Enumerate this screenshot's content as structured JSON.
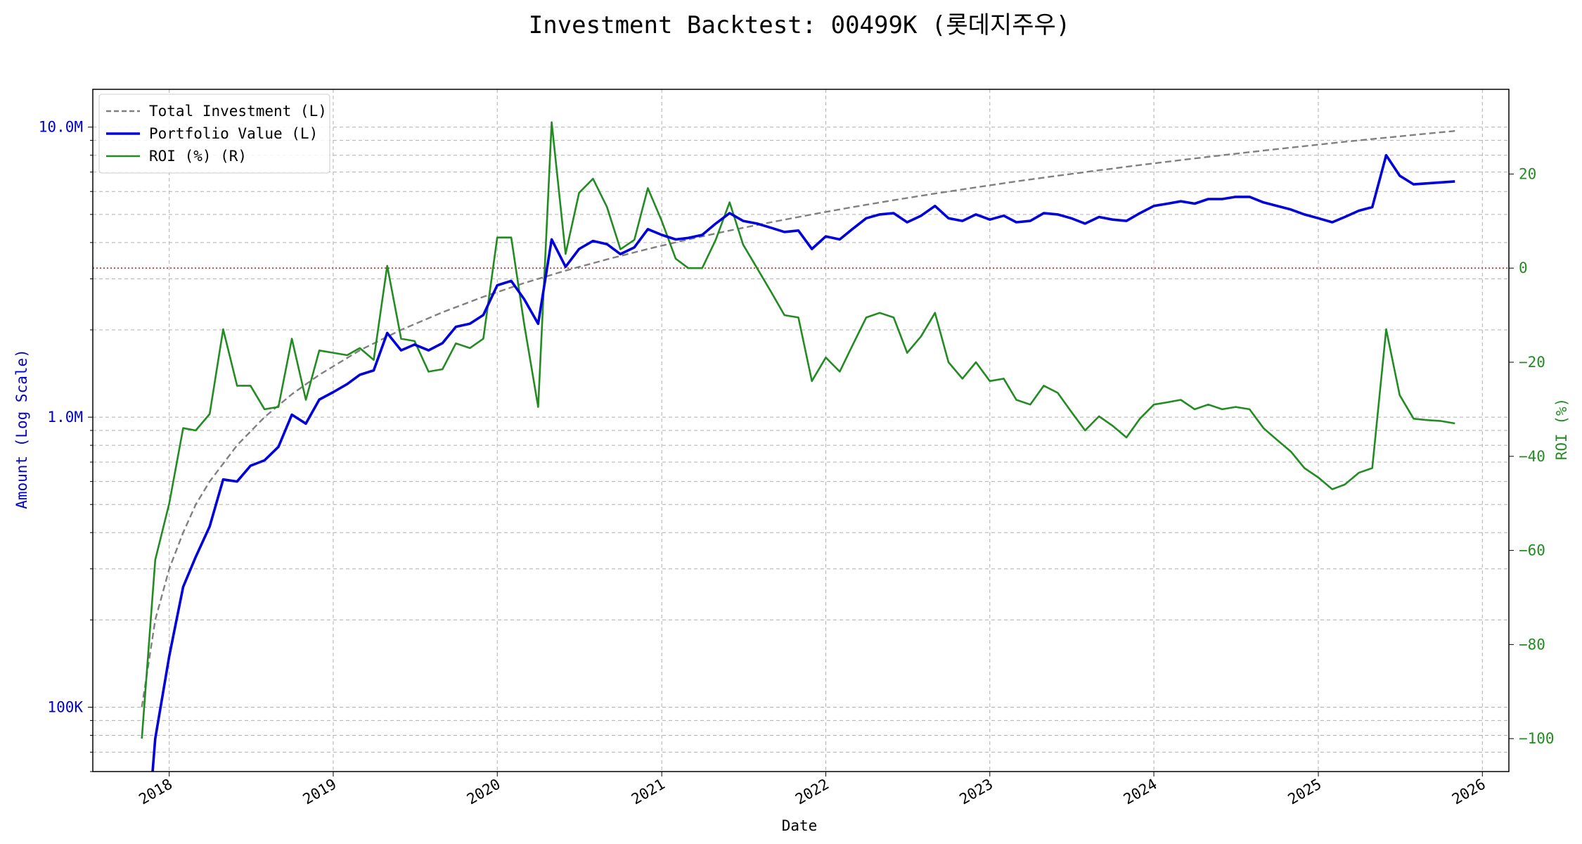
{
  "chart_data": {
    "type": "line",
    "title": "Investment Backtest: 00499K (롯데지주우)",
    "xlabel": "Date",
    "ylabel_left": "Amount (Log Scale)",
    "ylabel_right": "ROI (%)",
    "xlim": [
      "2017-07-15",
      "2026-03-01"
    ],
    "ylim_left": [
      60000,
      13500000
    ],
    "ylim_right": [
      -107,
      38
    ],
    "yscale_left": "log",
    "grid": true,
    "legend_position": "top-left",
    "x_ticks": [
      "2018",
      "2019",
      "2020",
      "2021",
      "2022",
      "2023",
      "2024",
      "2025",
      "2026"
    ],
    "y_ticks_left": [
      {
        "value": 100000,
        "label": "100K"
      },
      {
        "value": 1000000,
        "label": "1.0M"
      },
      {
        "value": 10000000,
        "label": "10.0M"
      }
    ],
    "y_ticks_right": [
      -100,
      -80,
      -60,
      -40,
      -20,
      0,
      20
    ],
    "reference_line": {
      "axis": "right",
      "value": 0,
      "color": "#d62728",
      "style": "dotted"
    },
    "series": [
      {
        "name": "Total Investment (L)",
        "axis": "left",
        "color": "#808080",
        "style": "dashed",
        "x": [
          "2017-11-01",
          "2017-12-01",
          "2018-01-01",
          "2018-02-01",
          "2018-03-01",
          "2018-04-01",
          "2018-06-01",
          "2018-08-01",
          "2018-10-01",
          "2018-12-01",
          "2019-03-01",
          "2019-06-01",
          "2019-09-01",
          "2019-12-01",
          "2020-03-01",
          "2020-06-01",
          "2020-09-01",
          "2020-12-01",
          "2021-03-01",
          "2021-06-01",
          "2021-09-01",
          "2021-12-01",
          "2022-03-01",
          "2022-06-01",
          "2022-09-01",
          "2022-12-01",
          "2023-03-01",
          "2023-06-01",
          "2023-09-01",
          "2023-12-01",
          "2024-03-01",
          "2024-06-01",
          "2024-09-01",
          "2024-12-01",
          "2025-03-01",
          "2025-06-01",
          "2025-09-01",
          "2025-11-01"
        ],
        "values": [
          100000,
          200000,
          300000,
          400000,
          500000,
          600000,
          800000,
          1000000,
          1200000,
          1400000,
          1700000,
          2000000,
          2300000,
          2600000,
          2900000,
          3200000,
          3500000,
          3800000,
          4100000,
          4400000,
          4700000,
          5000000,
          5300000,
          5600000,
          5900000,
          6200000,
          6500000,
          6800000,
          7100000,
          7400000,
          7700000,
          8000000,
          8300000,
          8600000,
          8900000,
          9200000,
          9500000,
          9700000
        ]
      },
      {
        "name": "Portfolio Value (L)",
        "axis": "left",
        "color": "#0000dd",
        "style": "solid",
        "x": [
          "2017-11-25",
          "2017-12-01",
          "2018-01-01",
          "2018-02-01",
          "2018-03-01",
          "2018-04-01",
          "2018-05-01",
          "2018-06-01",
          "2018-07-01",
          "2018-08-01",
          "2018-09-01",
          "2018-10-01",
          "2018-11-01",
          "2018-12-01",
          "2019-01-01",
          "2019-02-01",
          "2019-03-01",
          "2019-04-01",
          "2019-05-01",
          "2019-06-01",
          "2019-07-01",
          "2019-08-01",
          "2019-09-01",
          "2019-10-01",
          "2019-11-01",
          "2019-12-01",
          "2020-01-01",
          "2020-02-01",
          "2020-03-01",
          "2020-04-01",
          "2020-05-01",
          "2020-06-01",
          "2020-07-01",
          "2020-08-01",
          "2020-09-01",
          "2020-10-01",
          "2020-11-01",
          "2020-12-01",
          "2021-01-01",
          "2021-02-01",
          "2021-03-01",
          "2021-04-01",
          "2021-05-01",
          "2021-06-01",
          "2021-07-01",
          "2021-08-01",
          "2021-09-01",
          "2021-10-01",
          "2021-11-01",
          "2021-12-01",
          "2022-01-01",
          "2022-02-01",
          "2022-03-01",
          "2022-04-01",
          "2022-05-01",
          "2022-06-01",
          "2022-07-01",
          "2022-08-01",
          "2022-09-01",
          "2022-10-01",
          "2022-11-01",
          "2022-12-01",
          "2023-01-01",
          "2023-02-01",
          "2023-03-01",
          "2023-04-01",
          "2023-05-01",
          "2023-06-01",
          "2023-07-01",
          "2023-08-01",
          "2023-09-01",
          "2023-10-01",
          "2023-11-01",
          "2023-12-01",
          "2024-01-01",
          "2024-02-01",
          "2024-03-01",
          "2024-04-01",
          "2024-05-01",
          "2024-06-01",
          "2024-07-01",
          "2024-08-01",
          "2024-09-01",
          "2024-10-01",
          "2024-11-01",
          "2024-12-01",
          "2025-01-01",
          "2025-02-01",
          "2025-03-01",
          "2025-04-01",
          "2025-05-01",
          "2025-06-01",
          "2025-07-01",
          "2025-08-01",
          "2025-09-01",
          "2025-10-01",
          "2025-11-01"
        ],
        "values": [
          60000,
          78000,
          150000,
          260000,
          330000,
          420000,
          610000,
          600000,
          680000,
          710000,
          790000,
          1020000,
          950000,
          1150000,
          1220000,
          1300000,
          1400000,
          1450000,
          1950000,
          1700000,
          1780000,
          1700000,
          1800000,
          2050000,
          2100000,
          2250000,
          2850000,
          2950000,
          2550000,
          2100000,
          4100000,
          3300000,
          3800000,
          4050000,
          3950000,
          3650000,
          3850000,
          4450000,
          4250000,
          4100000,
          4150000,
          4250000,
          4650000,
          5050000,
          4750000,
          4650000,
          4500000,
          4350000,
          4400000,
          3800000,
          4200000,
          4100000,
          4450000,
          4850000,
          5000000,
          5050000,
          4700000,
          4950000,
          5350000,
          4850000,
          4750000,
          5000000,
          4800000,
          4950000,
          4700000,
          4750000,
          5050000,
          5000000,
          4850000,
          4650000,
          4900000,
          4800000,
          4750000,
          5050000,
          5350000,
          5450000,
          5550000,
          5450000,
          5650000,
          5650000,
          5750000,
          5750000,
          5500000,
          5350000,
          5200000,
          5000000,
          4850000,
          4700000,
          4900000,
          5150000,
          5300000,
          8000000,
          6800000,
          6350000,
          6400000,
          6450000,
          6500000
        ]
      },
      {
        "name": "ROI (%) (R)",
        "axis": "right",
        "color": "#228b22",
        "style": "solid",
        "x": [
          "2017-11-01",
          "2017-12-01",
          "2018-01-01",
          "2018-02-01",
          "2018-03-01",
          "2018-04-01",
          "2018-05-01",
          "2018-06-01",
          "2018-07-01",
          "2018-08-01",
          "2018-09-01",
          "2018-10-01",
          "2018-11-01",
          "2018-12-01",
          "2019-01-01",
          "2019-02-01",
          "2019-03-01",
          "2019-04-01",
          "2019-05-01",
          "2019-06-01",
          "2019-07-01",
          "2019-08-01",
          "2019-09-01",
          "2019-10-01",
          "2019-11-01",
          "2019-12-01",
          "2020-01-01",
          "2020-02-01",
          "2020-03-01",
          "2020-04-01",
          "2020-05-01",
          "2020-06-01",
          "2020-07-01",
          "2020-08-01",
          "2020-09-01",
          "2020-10-01",
          "2020-11-01",
          "2020-12-01",
          "2021-01-01",
          "2021-02-01",
          "2021-03-01",
          "2021-04-01",
          "2021-05-01",
          "2021-06-01",
          "2021-07-01",
          "2021-08-01",
          "2021-09-01",
          "2021-10-01",
          "2021-11-01",
          "2021-12-01",
          "2022-01-01",
          "2022-02-01",
          "2022-03-01",
          "2022-04-01",
          "2022-05-01",
          "2022-06-01",
          "2022-07-01",
          "2022-08-01",
          "2022-09-01",
          "2022-10-01",
          "2022-11-01",
          "2022-12-01",
          "2023-01-01",
          "2023-02-01",
          "2023-03-01",
          "2023-04-01",
          "2023-05-01",
          "2023-06-01",
          "2023-07-01",
          "2023-08-01",
          "2023-09-01",
          "2023-10-01",
          "2023-11-01",
          "2023-12-01",
          "2024-01-01",
          "2024-02-01",
          "2024-03-01",
          "2024-04-01",
          "2024-05-01",
          "2024-06-01",
          "2024-07-01",
          "2024-08-01",
          "2024-09-01",
          "2024-10-01",
          "2024-11-01",
          "2024-12-01",
          "2025-01-01",
          "2025-02-01",
          "2025-03-01",
          "2025-04-01",
          "2025-05-01",
          "2025-06-01",
          "2025-07-01",
          "2025-08-01",
          "2025-09-01",
          "2025-10-01",
          "2025-11-01"
        ],
        "values": [
          -100,
          -62,
          -50,
          -34,
          -34.5,
          -31,
          -13,
          -25,
          -25,
          -30,
          -29.5,
          -15,
          -28,
          -17.5,
          -18,
          -18.5,
          -17,
          -19.5,
          0.5,
          -15,
          -15.5,
          -22,
          -21.5,
          -16,
          -17,
          -15,
          6.5,
          6.5,
          -12,
          -29.5,
          31,
          3,
          16,
          19,
          13,
          4,
          6,
          17,
          10,
          2,
          0,
          0,
          6,
          14,
          5,
          0,
          -5,
          -10,
          -10.5,
          -24,
          -19,
          -22,
          -16.5,
          -10.5,
          -9.5,
          -10.5,
          -18,
          -14.5,
          -9.5,
          -20,
          -23.5,
          -20,
          -24,
          -23.5,
          -28,
          -29,
          -25,
          -26.5,
          -30.5,
          -34.5,
          -31.5,
          -33.5,
          -36,
          -32,
          -29,
          -28.5,
          -28,
          -30,
          -29,
          -30,
          -29.5,
          -30,
          -34,
          -36.5,
          -39,
          -42.5,
          -44.5,
          -47,
          -46,
          -43.5,
          -42.5,
          -13,
          -27,
          -32,
          -32.3,
          -32.5,
          -33
        ]
      }
    ]
  }
}
